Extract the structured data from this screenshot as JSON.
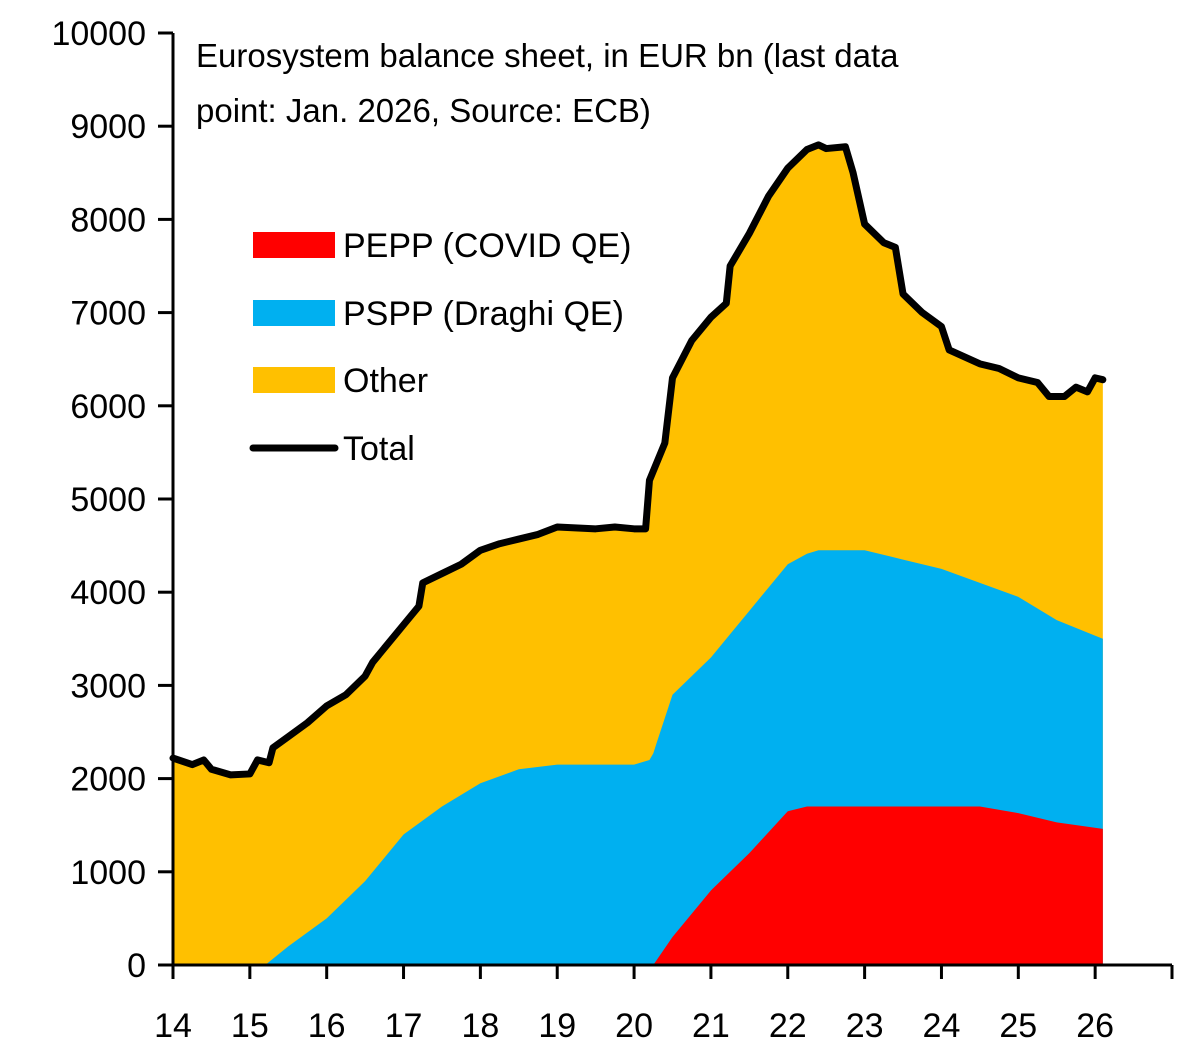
{
  "chart_data": {
    "type": "area",
    "title_lines": [
      "Eurosystem balance sheet, in EUR bn (last data",
      "point: Jan. 2026, Source: ECB)"
    ],
    "xlabel": "",
    "ylabel": "",
    "xlim": [
      14,
      27
    ],
    "ylim": [
      0,
      10000
    ],
    "x_ticks": [
      14,
      15,
      16,
      17,
      18,
      19,
      20,
      21,
      22,
      23,
      24,
      25,
      26
    ],
    "x_tick_labels": [
      "14",
      "15",
      "16",
      "17",
      "18",
      "19",
      "20",
      "21",
      "22",
      "23",
      "24",
      "25",
      "26"
    ],
    "y_ticks": [
      0,
      1000,
      2000,
      3000,
      4000,
      5000,
      6000,
      7000,
      8000,
      9000,
      10000
    ],
    "y_tick_labels": [
      "0",
      "1000",
      "2000",
      "3000",
      "4000",
      "5000",
      "6000",
      "7000",
      "8000",
      "9000",
      "10000"
    ],
    "grid": false,
    "legend_placement": "upper-left",
    "stacked": true,
    "series": [
      {
        "name": "PEPP (COVID QE)",
        "color": "#FF0000",
        "kind": "area",
        "points": [
          [
            20.25,
            0
          ],
          [
            20.5,
            300
          ],
          [
            21.0,
            800
          ],
          [
            21.5,
            1200
          ],
          [
            22.0,
            1650
          ],
          [
            22.25,
            1700
          ],
          [
            24.5,
            1700
          ],
          [
            25.0,
            1630
          ],
          [
            25.5,
            1530
          ],
          [
            26.1,
            1460
          ]
        ]
      },
      {
        "name": "PSPP (Draghi QE)",
        "color": "#00B0F0",
        "kind": "area",
        "points": [
          [
            15.2,
            0
          ],
          [
            15.5,
            200
          ],
          [
            16.0,
            500
          ],
          [
            16.5,
            900
          ],
          [
            17.0,
            1400
          ],
          [
            17.5,
            1700
          ],
          [
            18.0,
            1950
          ],
          [
            18.5,
            2100
          ],
          [
            19.0,
            2150
          ],
          [
            20.0,
            2150
          ],
          [
            20.2,
            2200
          ],
          [
            20.3,
            2340
          ],
          [
            20.5,
            2600
          ],
          [
            21.0,
            2500
          ],
          [
            21.5,
            2600
          ],
          [
            22.0,
            2650
          ],
          [
            22.4,
            2750
          ],
          [
            23.0,
            2750
          ],
          [
            23.5,
            2650
          ],
          [
            24.0,
            2550
          ],
          [
            24.5,
            2400
          ],
          [
            25.0,
            2320
          ],
          [
            25.5,
            2170
          ],
          [
            26.1,
            2040
          ]
        ]
      },
      {
        "name": "Other",
        "color": "#FFC000",
        "kind": "area-remainder"
      },
      {
        "name": "Total",
        "color": "#000000",
        "kind": "line",
        "points": [
          [
            14.0,
            2220
          ],
          [
            14.25,
            2150
          ],
          [
            14.4,
            2200
          ],
          [
            14.5,
            2100
          ],
          [
            14.75,
            2040
          ],
          [
            15.0,
            2050
          ],
          [
            15.1,
            2200
          ],
          [
            15.25,
            2170
          ],
          [
            15.3,
            2330
          ],
          [
            15.5,
            2450
          ],
          [
            15.75,
            2600
          ],
          [
            16.0,
            2780
          ],
          [
            16.25,
            2900
          ],
          [
            16.5,
            3100
          ],
          [
            16.6,
            3250
          ],
          [
            17.0,
            3650
          ],
          [
            17.2,
            3850
          ],
          [
            17.25,
            4100
          ],
          [
            17.5,
            4200
          ],
          [
            17.75,
            4300
          ],
          [
            18.0,
            4450
          ],
          [
            18.25,
            4520
          ],
          [
            18.5,
            4570
          ],
          [
            18.75,
            4620
          ],
          [
            19.0,
            4700
          ],
          [
            19.5,
            4680
          ],
          [
            19.75,
            4700
          ],
          [
            20.0,
            4680
          ],
          [
            20.15,
            4680
          ],
          [
            20.2,
            5200
          ],
          [
            20.4,
            5600
          ],
          [
            20.5,
            6300
          ],
          [
            20.75,
            6700
          ],
          [
            21.0,
            6950
          ],
          [
            21.2,
            7100
          ],
          [
            21.25,
            7500
          ],
          [
            21.5,
            7850
          ],
          [
            21.75,
            8250
          ],
          [
            22.0,
            8550
          ],
          [
            22.25,
            8750
          ],
          [
            22.4,
            8800
          ],
          [
            22.5,
            8760
          ],
          [
            22.75,
            8780
          ],
          [
            22.85,
            8500
          ],
          [
            23.0,
            7950
          ],
          [
            23.25,
            7750
          ],
          [
            23.4,
            7700
          ],
          [
            23.5,
            7200
          ],
          [
            23.75,
            7000
          ],
          [
            24.0,
            6850
          ],
          [
            24.1,
            6600
          ],
          [
            24.5,
            6450
          ],
          [
            24.75,
            6400
          ],
          [
            25.0,
            6300
          ],
          [
            25.25,
            6250
          ],
          [
            25.4,
            6100
          ],
          [
            25.6,
            6100
          ],
          [
            25.75,
            6200
          ],
          [
            25.9,
            6150
          ],
          [
            26.0,
            6300
          ],
          [
            26.1,
            6280
          ]
        ]
      }
    ]
  }
}
